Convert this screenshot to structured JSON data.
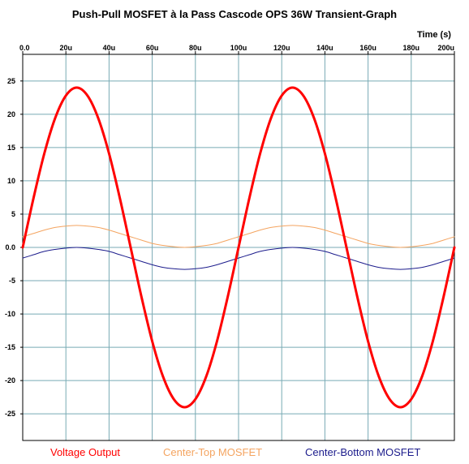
{
  "chart_data": {
    "type": "line",
    "title": "Push-Pull MOSFET à la Pass Cascode OPS 36W Transient-Graph",
    "xlabel": "Time  (s)",
    "xlim": [
      0,
      200
    ],
    "ylim": [
      -29,
      29
    ],
    "x_ticks": [
      {
        "value": 0,
        "label": "0.0"
      },
      {
        "value": 20,
        "label": "20u"
      },
      {
        "value": 40,
        "label": "40u"
      },
      {
        "value": 60,
        "label": "60u"
      },
      {
        "value": 80,
        "label": "80u"
      },
      {
        "value": 100,
        "label": "100u"
      },
      {
        "value": 120,
        "label": "120u"
      },
      {
        "value": 140,
        "label": "140u"
      },
      {
        "value": 160,
        "label": "160u"
      },
      {
        "value": 180,
        "label": "180u"
      },
      {
        "value": 200,
        "label": "200u"
      }
    ],
    "y_ticks": [
      {
        "value": 25,
        "label": "25"
      },
      {
        "value": 20,
        "label": "20"
      },
      {
        "value": 15,
        "label": "15"
      },
      {
        "value": 10,
        "label": "10"
      },
      {
        "value": 5,
        "label": "5"
      },
      {
        "value": 0,
        "label": "0.0"
      },
      {
        "value": -5,
        "label": "-5"
      },
      {
        "value": -10,
        "label": "-10"
      },
      {
        "value": -15,
        "label": "-15"
      },
      {
        "value": -20,
        "label": "-20"
      },
      {
        "value": -25,
        "label": "-25"
      }
    ],
    "grid": true,
    "legend_position": "bottom",
    "series": [
      {
        "name": "Voltage Output",
        "color": "#ff0000",
        "x": [
          0,
          5,
          10,
          15,
          20,
          25,
          30,
          35,
          40,
          45,
          50,
          55,
          60,
          65,
          70,
          75,
          80,
          85,
          90,
          95,
          100,
          105,
          110,
          115,
          120,
          125,
          130,
          135,
          140,
          145,
          150,
          155,
          160,
          165,
          170,
          175,
          180,
          185,
          190,
          195,
          200
        ],
        "y": [
          0,
          7.4,
          14.1,
          19.4,
          22.8,
          24,
          22.8,
          19.4,
          14.1,
          7.4,
          0,
          -7.4,
          -14.1,
          -19.4,
          -22.8,
          -24,
          -22.8,
          -19.4,
          -14.1,
          -7.4,
          0,
          7.4,
          14.1,
          19.4,
          22.8,
          24,
          22.8,
          19.4,
          14.1,
          7.4,
          0,
          -7.4,
          -14.1,
          -19.4,
          -22.8,
          -24,
          -22.8,
          -19.4,
          -14.1,
          -7.4,
          0
        ]
      },
      {
        "name": "Center-Top MOSFET",
        "color": "#f4a460",
        "x": [
          0,
          5,
          10,
          15,
          20,
          25,
          30,
          35,
          40,
          45,
          50,
          55,
          60,
          65,
          70,
          75,
          80,
          85,
          90,
          95,
          100,
          105,
          110,
          115,
          120,
          125,
          130,
          135,
          140,
          145,
          150,
          155,
          160,
          165,
          170,
          175,
          180,
          185,
          190,
          195,
          200
        ],
        "y": [
          1.6,
          2.1,
          2.6,
          3.0,
          3.2,
          3.3,
          3.2,
          3.0,
          2.6,
          2.1,
          1.6,
          1.1,
          0.6,
          0.3,
          0.1,
          0,
          0.1,
          0.3,
          0.6,
          1.1,
          1.6,
          2.1,
          2.6,
          3.0,
          3.2,
          3.3,
          3.2,
          3.0,
          2.6,
          2.1,
          1.6,
          1.1,
          0.6,
          0.3,
          0.1,
          0,
          0.1,
          0.3,
          0.6,
          1.1,
          1.6
        ]
      },
      {
        "name": "Center-Bottom MOSFET",
        "color": "#1c1c8c",
        "x": [
          0,
          5,
          10,
          15,
          20,
          25,
          30,
          35,
          40,
          45,
          50,
          55,
          60,
          65,
          70,
          75,
          80,
          85,
          90,
          95,
          100,
          105,
          110,
          115,
          120,
          125,
          130,
          135,
          140,
          145,
          150,
          155,
          160,
          165,
          170,
          175,
          180,
          185,
          190,
          195,
          200
        ],
        "y": [
          -1.6,
          -1.1,
          -0.6,
          -0.3,
          -0.1,
          0,
          -0.1,
          -0.3,
          -0.6,
          -1.1,
          -1.6,
          -2.1,
          -2.6,
          -3.0,
          -3.2,
          -3.3,
          -3.2,
          -3.0,
          -2.6,
          -2.1,
          -1.6,
          -1.1,
          -0.6,
          -0.3,
          -0.1,
          0,
          -0.1,
          -0.3,
          -0.6,
          -1.1,
          -1.6,
          -2.1,
          -2.6,
          -3.0,
          -3.2,
          -3.3,
          -3.2,
          -3.0,
          -2.6,
          -2.1,
          -1.6
        ]
      }
    ]
  }
}
